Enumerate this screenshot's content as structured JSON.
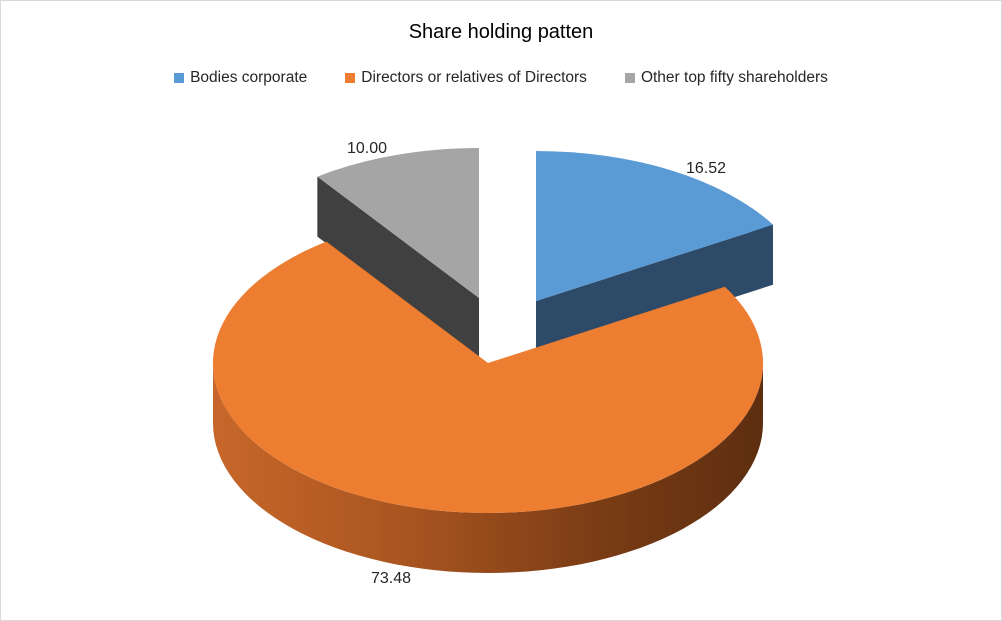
{
  "chart_data": {
    "type": "pie",
    "style": "3d-exploded",
    "title": "Share holding patten",
    "legend_position": "top",
    "slices": [
      {
        "label": "Bodies corporate",
        "value": 16.52,
        "display": "16.52",
        "color": "#5b9bd5",
        "side_color": "#2e4a69"
      },
      {
        "label": "Directors or relatives of Directors",
        "value": 73.48,
        "display": "73.48",
        "color": "#ed7d31",
        "side_color": "#8a4318"
      },
      {
        "label": "Other top fifty shareholders",
        "value": 10.0,
        "display": "10.00",
        "color": "#a5a5a5",
        "side_color": "#404040"
      }
    ]
  }
}
